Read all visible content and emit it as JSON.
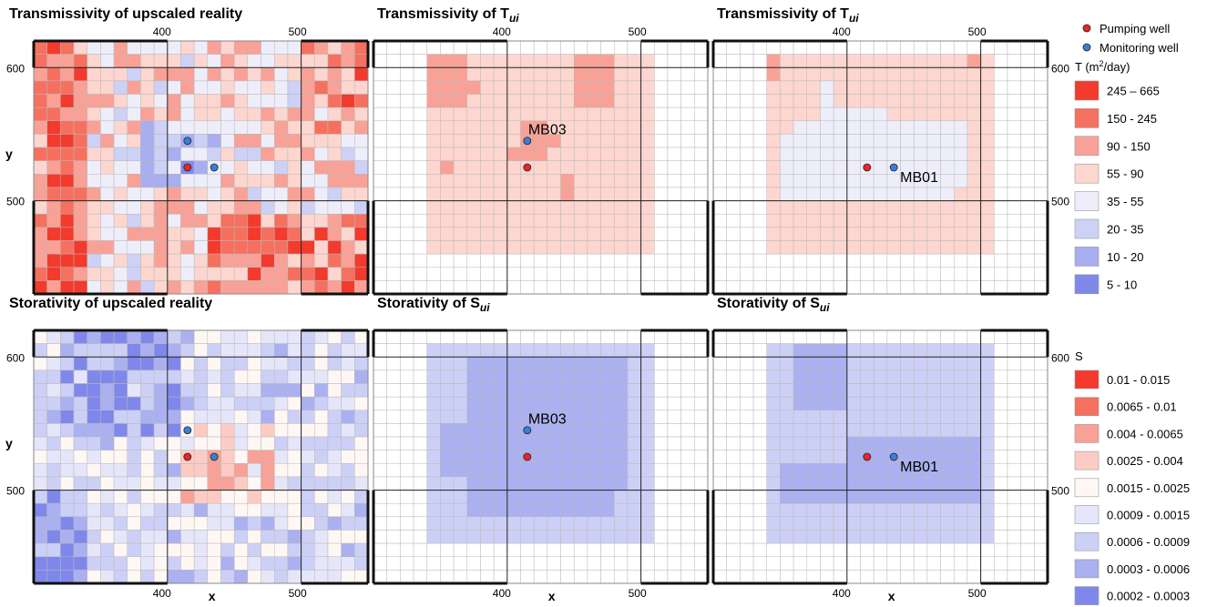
{
  "figure": {
    "panels": [
      {
        "id": "tr",
        "title": "Transmissivity of upscaled reality",
        "title_main": "",
        "title_sub": "",
        "kind": "T",
        "mode": "reality"
      },
      {
        "id": "tu1",
        "title": "",
        "title_main": "Transmissivity of T",
        "title_sub": "ui",
        "kind": "T",
        "mode": "mb03",
        "annotation": "MB03"
      },
      {
        "id": "tu2",
        "title": "",
        "title_main": "Transmissivity of T",
        "title_sub": "ui",
        "kind": "T",
        "mode": "mb01",
        "annotation": "MB01"
      },
      {
        "id": "sr",
        "title": "Storativity of upscaled reality",
        "title_main": "",
        "title_sub": "",
        "kind": "S",
        "mode": "reality"
      },
      {
        "id": "su1",
        "title": "",
        "title_main": "Storativity of S",
        "title_sub": "ui",
        "kind": "S",
        "mode": "mb03",
        "annotation": "MB03"
      },
      {
        "id": "su2",
        "title": "",
        "title_main": "Storativity of S",
        "title_sub": "ui",
        "kind": "S",
        "mode": "mb01",
        "annotation": "MB01"
      }
    ],
    "axes": {
      "x_label": "x",
      "y_label": "y",
      "x_ticks": [
        "400",
        "500"
      ],
      "y_ticks": [
        "600",
        "500"
      ]
    },
    "wells": {
      "pumping_label": "Pumping well",
      "monitoring_label": "Monitoring well",
      "pumping_color": "#e8262b",
      "monitoring_color": "#3a7fd5"
    },
    "legend_T": {
      "title_prefix": "T (m",
      "title_sup": "2",
      "title_suffix": "/day)",
      "classes": [
        {
          "label": "245 – 665",
          "color": "#f23a2d"
        },
        {
          "label": "150 - 245",
          "color": "#f5705f"
        },
        {
          "label": "90 - 150",
          "color": "#f9a196"
        },
        {
          "label": "55 - 90",
          "color": "#fcd6cf"
        },
        {
          "label": "35 - 55",
          "color": "#eeeefb"
        },
        {
          "label": "20 - 35",
          "color": "#cdd1f6"
        },
        {
          "label": "10 - 20",
          "color": "#a8aeef"
        },
        {
          "label": "5 - 10",
          "color": "#8089ea"
        }
      ]
    },
    "legend_S": {
      "title": "S",
      "classes": [
        {
          "label": "0.01 - 0.015",
          "color": "#f23a2d"
        },
        {
          "label": "0.0065 - 0.01",
          "color": "#f5705f"
        },
        {
          "label": "0.004 - 0.0065",
          "color": "#f9a196"
        },
        {
          "label": "0.0025 - 0.004",
          "color": "#fcccc4"
        },
        {
          "label": "0.0015 - 0.0025",
          "color": "#fff7f4"
        },
        {
          "label": "0.0009 - 0.0015",
          "color": "#e6e6fa"
        },
        {
          "label": "0.0006 - 0.0009",
          "color": "#ccd0f6"
        },
        {
          "label": "0.0003 - 0.0006",
          "color": "#aab0f0"
        },
        {
          "label": "0.0002 - 0.0003",
          "color": "#7f88ea"
        }
      ]
    }
  }
}
